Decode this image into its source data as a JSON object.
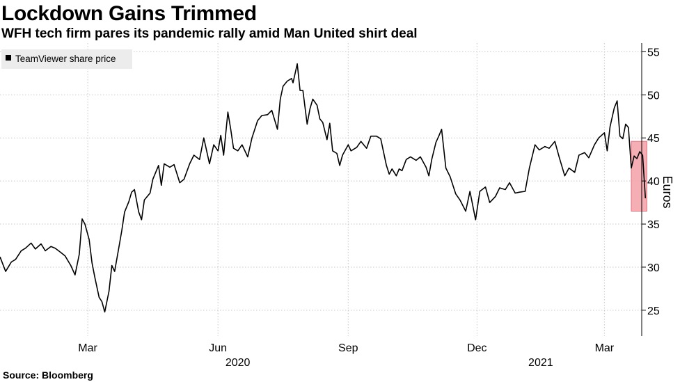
{
  "title": "Lockdown Gains Trimmed",
  "subtitle": "WFH tech firm pares its pandemic rally amid Man United shirt deal",
  "source": "Source: Bloomberg",
  "chart_data": {
    "type": "line",
    "ylabel": "Euros",
    "ylim": [
      22,
      56
    ],
    "y_ticks": [
      25,
      30,
      35,
      40,
      45,
      50,
      55
    ],
    "x_ticks": [
      {
        "label": "Mar",
        "date": "2020-03-01"
      },
      {
        "label": "Jun",
        "date": "2020-06-01"
      },
      {
        "label": "Sep",
        "date": "2020-09-01"
      },
      {
        "label": "Dec",
        "date": "2020-12-01"
      },
      {
        "label": "Mar",
        "date": "2021-03-01"
      }
    ],
    "year_labels": [
      {
        "label": "2020",
        "date": "2020-06-15"
      },
      {
        "label": "2021",
        "date": "2021-01-15"
      }
    ],
    "xlim": [
      "2019-12-30",
      "2021-03-20"
    ],
    "grid": true,
    "legend_position": "top-left",
    "series": [
      {
        "name": "TeamViewer share price",
        "color": "#000000",
        "points": [
          [
            "2019-12-30",
            31.2
          ],
          [
            "2020-01-03",
            29.5
          ],
          [
            "2020-01-07",
            30.6
          ],
          [
            "2020-01-10",
            30.9
          ],
          [
            "2020-01-14",
            31.9
          ],
          [
            "2020-01-17",
            32.2
          ],
          [
            "2020-01-21",
            32.8
          ],
          [
            "2020-01-24",
            32.1
          ],
          [
            "2020-01-28",
            32.7
          ],
          [
            "2020-01-31",
            31.9
          ],
          [
            "2020-02-04",
            32.4
          ],
          [
            "2020-02-07",
            32.2
          ],
          [
            "2020-02-11",
            31.7
          ],
          [
            "2020-02-14",
            31.3
          ],
          [
            "2020-02-18",
            30.2
          ],
          [
            "2020-02-21",
            29.1
          ],
          [
            "2020-02-24",
            31.5
          ],
          [
            "2020-02-26",
            35.6
          ],
          [
            "2020-02-28",
            35.0
          ],
          [
            "2020-03-02",
            33.2
          ],
          [
            "2020-03-04",
            30.5
          ],
          [
            "2020-03-06",
            28.8
          ],
          [
            "2020-03-09",
            26.5
          ],
          [
            "2020-03-11",
            26.0
          ],
          [
            "2020-03-13",
            24.8
          ],
          [
            "2020-03-16",
            27.2
          ],
          [
            "2020-03-18",
            30.2
          ],
          [
            "2020-03-20",
            29.5
          ],
          [
            "2020-03-23",
            32.3
          ],
          [
            "2020-03-25",
            34.2
          ],
          [
            "2020-03-27",
            36.4
          ],
          [
            "2020-03-30",
            37.6
          ],
          [
            "2020-04-01",
            38.7
          ],
          [
            "2020-04-03",
            39.0
          ],
          [
            "2020-04-06",
            36.4
          ],
          [
            "2020-04-08",
            35.5
          ],
          [
            "2020-04-10",
            37.8
          ],
          [
            "2020-04-14",
            38.6
          ],
          [
            "2020-04-16",
            40.2
          ],
          [
            "2020-04-20",
            41.8
          ],
          [
            "2020-04-22",
            39.5
          ],
          [
            "2020-04-24",
            42.0
          ],
          [
            "2020-04-28",
            41.6
          ],
          [
            "2020-05-01",
            41.9
          ],
          [
            "2020-05-05",
            39.8
          ],
          [
            "2020-05-08",
            40.2
          ],
          [
            "2020-05-12",
            42.0
          ],
          [
            "2020-05-15",
            43.0
          ],
          [
            "2020-05-19",
            42.5
          ],
          [
            "2020-05-22",
            45.0
          ],
          [
            "2020-05-26",
            42.0
          ],
          [
            "2020-05-29",
            44.2
          ],
          [
            "2020-06-01",
            43.5
          ],
          [
            "2020-06-03",
            45.3
          ],
          [
            "2020-06-05",
            43.0
          ],
          [
            "2020-06-08",
            48.0
          ],
          [
            "2020-06-10",
            46.0
          ],
          [
            "2020-06-12",
            43.8
          ],
          [
            "2020-06-15",
            43.5
          ],
          [
            "2020-06-18",
            44.2
          ],
          [
            "2020-06-22",
            42.8
          ],
          [
            "2020-06-25",
            45.0
          ],
          [
            "2020-06-29",
            47.0
          ],
          [
            "2020-07-02",
            47.6
          ],
          [
            "2020-07-06",
            47.7
          ],
          [
            "2020-07-09",
            48.2
          ],
          [
            "2020-07-13",
            46.0
          ],
          [
            "2020-07-15",
            49.5
          ],
          [
            "2020-07-17",
            51.0
          ],
          [
            "2020-07-20",
            51.6
          ],
          [
            "2020-07-23",
            51.9
          ],
          [
            "2020-07-24",
            51.4
          ],
          [
            "2020-07-27",
            53.6
          ],
          [
            "2020-07-29",
            50.5
          ],
          [
            "2020-07-31",
            50.5
          ],
          [
            "2020-08-03",
            46.6
          ],
          [
            "2020-08-05",
            48.4
          ],
          [
            "2020-08-07",
            49.5
          ],
          [
            "2020-08-10",
            48.8
          ],
          [
            "2020-08-12",
            47.2
          ],
          [
            "2020-08-14",
            46.8
          ],
          [
            "2020-08-17",
            44.8
          ],
          [
            "2020-08-19",
            46.7
          ],
          [
            "2020-08-21",
            43.5
          ],
          [
            "2020-08-24",
            43.2
          ],
          [
            "2020-08-26",
            41.8
          ],
          [
            "2020-08-28",
            43.0
          ],
          [
            "2020-09-01",
            44.2
          ],
          [
            "2020-09-03",
            43.5
          ],
          [
            "2020-09-07",
            43.9
          ],
          [
            "2020-09-10",
            44.6
          ],
          [
            "2020-09-14",
            43.8
          ],
          [
            "2020-09-17",
            45.2
          ],
          [
            "2020-09-21",
            45.2
          ],
          [
            "2020-09-24",
            44.9
          ],
          [
            "2020-09-28",
            41.8
          ],
          [
            "2020-09-30",
            40.8
          ],
          [
            "2020-10-02",
            41.4
          ],
          [
            "2020-10-05",
            40.6
          ],
          [
            "2020-10-07",
            41.4
          ],
          [
            "2020-10-09",
            41.2
          ],
          [
            "2020-10-12",
            42.5
          ],
          [
            "2020-10-15",
            42.8
          ],
          [
            "2020-10-19",
            42.4
          ],
          [
            "2020-10-22",
            42.8
          ],
          [
            "2020-10-26",
            41.6
          ],
          [
            "2020-10-28",
            40.6
          ],
          [
            "2020-10-30",
            42.5
          ],
          [
            "2020-11-02",
            44.5
          ],
          [
            "2020-11-04",
            45.2
          ],
          [
            "2020-11-06",
            46.0
          ],
          [
            "2020-11-09",
            41.5
          ],
          [
            "2020-11-12",
            40.5
          ],
          [
            "2020-11-16",
            38.5
          ],
          [
            "2020-11-19",
            37.8
          ],
          [
            "2020-11-23",
            36.5
          ],
          [
            "2020-11-26",
            38.8
          ],
          [
            "2020-11-30",
            35.5
          ],
          [
            "2020-12-03",
            38.8
          ],
          [
            "2020-12-07",
            39.3
          ],
          [
            "2020-12-10",
            37.5
          ],
          [
            "2020-12-14",
            38.2
          ],
          [
            "2020-12-17",
            39.2
          ],
          [
            "2020-12-21",
            39.0
          ],
          [
            "2020-12-24",
            39.8
          ],
          [
            "2020-12-28",
            38.6
          ],
          [
            "2020-12-31",
            38.7
          ],
          [
            "2021-01-04",
            38.8
          ],
          [
            "2021-01-07",
            41.5
          ],
          [
            "2021-01-11",
            44.2
          ],
          [
            "2021-01-14",
            43.6
          ],
          [
            "2021-01-18",
            44.0
          ],
          [
            "2021-01-21",
            43.8
          ],
          [
            "2021-01-25",
            44.6
          ],
          [
            "2021-01-28",
            42.8
          ],
          [
            "2021-02-01",
            40.6
          ],
          [
            "2021-02-04",
            41.5
          ],
          [
            "2021-02-08",
            41.0
          ],
          [
            "2021-02-11",
            43.0
          ],
          [
            "2021-02-15",
            43.3
          ],
          [
            "2021-02-18",
            42.7
          ],
          [
            "2021-02-22",
            44.2
          ],
          [
            "2021-02-25",
            45.0
          ],
          [
            "2021-03-01",
            45.6
          ],
          [
            "2021-03-03",
            43.5
          ],
          [
            "2021-03-05",
            46.3
          ],
          [
            "2021-03-08",
            48.5
          ],
          [
            "2021-03-10",
            49.3
          ],
          [
            "2021-03-12",
            45.2
          ],
          [
            "2021-03-14",
            44.9
          ],
          [
            "2021-03-16",
            46.6
          ],
          [
            "2021-03-18",
            46.2
          ],
          [
            "2021-03-20",
            41.5
          ],
          [
            "2021-03-22",
            42.9
          ],
          [
            "2021-03-24",
            42.6
          ],
          [
            "2021-03-26",
            43.4
          ],
          [
            "2021-03-28",
            43.0
          ],
          [
            "2021-03-30",
            38.0
          ]
        ]
      }
    ],
    "highlight": {
      "x_from": "2021-03-20",
      "x_to": "2021-03-31",
      "y_from": 36.5,
      "y_to": 44.6,
      "color": "#f4a0a8"
    }
  },
  "legend": {
    "label": "TeamViewer share price"
  }
}
